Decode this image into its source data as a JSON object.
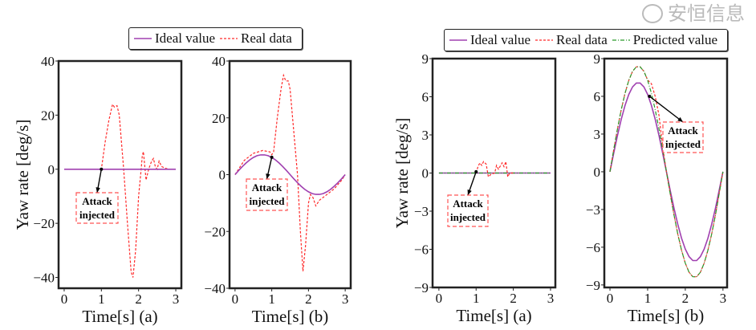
{
  "legends": [
    {
      "items": [
        {
          "label": "Ideal value",
          "color": "#a040b0",
          "style": "solid"
        },
        {
          "label": "Real data",
          "color": "#ff2a2a",
          "style": "dashed"
        }
      ]
    },
    {
      "items": [
        {
          "label": "Ideal value",
          "color": "#a040b0",
          "style": "solid"
        },
        {
          "label": "Real data",
          "color": "#ff2a2a",
          "style": "dashed"
        },
        {
          "label": "Predicted value",
          "color": "#2a9a2a",
          "style": "dashdot"
        }
      ]
    }
  ],
  "watermark": "安恒信息",
  "chart_data": [
    {
      "type": "line",
      "xlabel": "Time[s] (a)",
      "ylabel": "Yaw rate [deg/s]",
      "xlim": [
        -0.15,
        3.15
      ],
      "ylim": [
        -44,
        40
      ],
      "xticks": [
        "0",
        "1",
        "2",
        "3"
      ],
      "xtick_values": [
        0,
        1,
        2,
        3
      ],
      "yticks": [
        "−40",
        "−20",
        "0",
        "20",
        "40"
      ],
      "ytick_values": [
        -40,
        -20,
        0,
        20,
        40
      ],
      "grid": false,
      "annotation": {
        "text": [
          "Attack",
          "injected"
        ],
        "xy": [
          1.0,
          0
        ]
      },
      "series": [
        {
          "name": "Real data",
          "color": "#ff2a2a",
          "style": "dashed",
          "points": [
            [
              0,
              0
            ],
            [
              1,
              0
            ],
            [
              1.1,
              10
            ],
            [
              1.2,
              18
            ],
            [
              1.3,
              24
            ],
            [
              1.35,
              23
            ],
            [
              1.42,
              23.5
            ],
            [
              1.48,
              20
            ],
            [
              1.6,
              0
            ],
            [
              1.7,
              -20
            ],
            [
              1.8,
              -38
            ],
            [
              1.85,
              -40
            ],
            [
              1.92,
              -30
            ],
            [
              2.0,
              -10
            ],
            [
              2.07,
              0
            ],
            [
              2.1,
              5
            ],
            [
              2.13,
              6.5
            ],
            [
              2.2,
              -4
            ],
            [
              2.27,
              0
            ],
            [
              2.35,
              3
            ],
            [
              2.4,
              4
            ],
            [
              2.45,
              1
            ],
            [
              2.5,
              0
            ],
            [
              2.55,
              3
            ],
            [
              2.62,
              1
            ],
            [
              2.7,
              0.5
            ],
            [
              2.8,
              0
            ],
            [
              3,
              0
            ]
          ]
        },
        {
          "name": "Ideal value",
          "color": "#a040b0",
          "style": "solid",
          "points": [
            [
              0,
              0
            ],
            [
              3,
              0
            ]
          ]
        }
      ]
    },
    {
      "type": "line",
      "xlabel": "Time[s] (b)",
      "ylabel": "",
      "xlim": [
        -0.15,
        3.15
      ],
      "ylim": [
        -40,
        40
      ],
      "xticks": [
        "0",
        "1",
        "2",
        "3"
      ],
      "xtick_values": [
        0,
        1,
        2,
        3
      ],
      "yticks": [
        "−40",
        "−20",
        "0",
        "20",
        "40"
      ],
      "ytick_values": [
        -40,
        -20,
        0,
        20,
        40
      ],
      "grid": false,
      "annotation": {
        "text": [
          "Attack",
          "injected"
        ],
        "xy": [
          1.0,
          6.1
        ]
      },
      "series": [
        {
          "name": "Real data",
          "color": "#ff2a2a",
          "style": "dashed",
          "points": [
            [
              0,
              0
            ],
            [
              0.25,
              5
            ],
            [
              0.5,
              7.5
            ],
            [
              0.75,
              8.5
            ],
            [
              0.95,
              8
            ],
            [
              1.0,
              7
            ],
            [
              1.05,
              8
            ],
            [
              1.15,
              20
            ],
            [
              1.25,
              30
            ],
            [
              1.32,
              35
            ],
            [
              1.38,
              33
            ],
            [
              1.45,
              33
            ],
            [
              1.5,
              30
            ],
            [
              1.6,
              15
            ],
            [
              1.7,
              0
            ],
            [
              1.78,
              -20
            ],
            [
              1.85,
              -34
            ],
            [
              1.92,
              -25
            ],
            [
              2.0,
              -10
            ],
            [
              2.05,
              -7
            ],
            [
              2.12,
              -8
            ],
            [
              2.2,
              -11
            ],
            [
              2.3,
              -9
            ],
            [
              2.5,
              -7
            ],
            [
              2.7,
              -5
            ],
            [
              2.9,
              -2
            ],
            [
              3,
              0
            ]
          ]
        },
        {
          "name": "Ideal value",
          "color": "#a040b0",
          "style": "solid",
          "points": [
            [
              0,
              0
            ],
            [
              0.1,
              1.46
            ],
            [
              0.2,
              2.85
            ],
            [
              0.3,
              4.11
            ],
            [
              0.4,
              5.2
            ],
            [
              0.5,
              6.06
            ],
            [
              0.6,
              6.66
            ],
            [
              0.7,
              6.96
            ],
            [
              0.8,
              6.96
            ],
            [
              0.9,
              6.66
            ],
            [
              1.0,
              6.06
            ],
            [
              1.1,
              5.2
            ],
            [
              1.2,
              4.11
            ],
            [
              1.3,
              2.85
            ],
            [
              1.4,
              1.46
            ],
            [
              1.5,
              0
            ],
            [
              1.6,
              -1.46
            ],
            [
              1.7,
              -2.85
            ],
            [
              1.8,
              -4.11
            ],
            [
              1.9,
              -5.2
            ],
            [
              2.0,
              -6.06
            ],
            [
              2.1,
              -6.66
            ],
            [
              2.2,
              -6.96
            ],
            [
              2.3,
              -6.96
            ],
            [
              2.4,
              -6.66
            ],
            [
              2.5,
              -6.06
            ],
            [
              2.6,
              -5.2
            ],
            [
              2.7,
              -4.11
            ],
            [
              2.8,
              -2.85
            ],
            [
              2.9,
              -1.46
            ],
            [
              3.0,
              0
            ]
          ]
        }
      ]
    },
    {
      "type": "line",
      "xlabel": "Time[s] (a)",
      "ylabel": "Yaw rate [deg/s]",
      "xlim": [
        -0.17,
        3.13
      ],
      "ylim": [
        -9,
        9
      ],
      "xticks": [
        "0",
        "1",
        "2",
        "3"
      ],
      "xtick_values": [
        0,
        1,
        2,
        3
      ],
      "yticks": [
        "−9",
        "−6",
        "−3",
        "0",
        "3",
        "6",
        "9"
      ],
      "ytick_values": [
        -9,
        -6,
        -3,
        0,
        3,
        6,
        9
      ],
      "grid": false,
      "annotation": {
        "text": [
          "Attack",
          "injected"
        ],
        "xy": [
          1.0,
          0.1
        ]
      },
      "series": [
        {
          "name": "Ideal value",
          "color": "#a040b0",
          "style": "solid",
          "points": [
            [
              0,
              0
            ],
            [
              3,
              0
            ]
          ]
        },
        {
          "name": "Predicted value",
          "color": "#2a9a2a",
          "style": "dashdot",
          "points": [
            [
              0,
              0
            ],
            [
              3,
              0
            ]
          ]
        },
        {
          "name": "Real data",
          "color": "#ff2a2a",
          "style": "dashed",
          "points": [
            [
              1,
              0
            ],
            [
              1.05,
              0.5
            ],
            [
              1.1,
              0.8
            ],
            [
              1.15,
              0.6
            ],
            [
              1.2,
              0.9
            ],
            [
              1.27,
              0.7
            ],
            [
              1.33,
              -0.3
            ],
            [
              1.4,
              -0.1
            ],
            [
              1.5,
              0
            ],
            [
              1.55,
              0.6
            ],
            [
              1.6,
              0.3
            ],
            [
              1.7,
              0.8
            ],
            [
              1.75,
              0.5
            ],
            [
              1.8,
              0.9
            ],
            [
              1.85,
              -0.3
            ],
            [
              1.9,
              0
            ],
            [
              2,
              0
            ]
          ]
        }
      ]
    },
    {
      "type": "line",
      "xlabel": "Time[s] (b)",
      "ylabel": "",
      "xlim": [
        -0.15,
        3.11
      ],
      "ylim": [
        -9.2,
        9
      ],
      "xticks": [
        "0",
        "1",
        "2",
        "3"
      ],
      "xtick_values": [
        0,
        1,
        2,
        3
      ],
      "yticks": [
        "−9",
        "−6",
        "−3",
        "0",
        "3",
        "6",
        "9"
      ],
      "ytick_values": [
        -9,
        -6,
        -3,
        0,
        3,
        6,
        9
      ],
      "grid": false,
      "annotation": {
        "text": [
          "Attack",
          "injected"
        ],
        "xy": [
          1.05,
          6.0
        ]
      },
      "series": [
        {
          "name": "Ideal value",
          "color": "#a040b0",
          "style": "solid",
          "points": [
            [
              0,
              0
            ],
            [
              0.1,
              1.48
            ],
            [
              0.2,
              2.89
            ],
            [
              0.3,
              4.17
            ],
            [
              0.4,
              5.28
            ],
            [
              0.5,
              6.15
            ],
            [
              0.6,
              6.75
            ],
            [
              0.7,
              7.06
            ],
            [
              0.8,
              7.06
            ],
            [
              0.9,
              6.75
            ],
            [
              1.0,
              6.15
            ],
            [
              1.1,
              5.28
            ],
            [
              1.2,
              4.17
            ],
            [
              1.3,
              2.89
            ],
            [
              1.4,
              1.48
            ],
            [
              1.5,
              0
            ],
            [
              1.6,
              -1.48
            ],
            [
              1.7,
              -2.89
            ],
            [
              1.8,
              -4.17
            ],
            [
              1.9,
              -5.28
            ],
            [
              2.0,
              -6.15
            ],
            [
              2.1,
              -6.75
            ],
            [
              2.2,
              -7.06
            ],
            [
              2.3,
              -7.06
            ],
            [
              2.4,
              -6.75
            ],
            [
              2.5,
              -6.15
            ],
            [
              2.6,
              -5.28
            ],
            [
              2.7,
              -4.17
            ],
            [
              2.8,
              -2.89
            ],
            [
              2.9,
              -1.48
            ],
            [
              3.0,
              0
            ]
          ]
        },
        {
          "name": "Real data",
          "color": "#ff2a2a",
          "style": "dashed",
          "points": [
            [
              0,
              0
            ],
            [
              0.1,
              1.75
            ],
            [
              0.2,
              3.42
            ],
            [
              0.3,
              4.94
            ],
            [
              0.4,
              6.24
            ],
            [
              0.5,
              7.27
            ],
            [
              0.6,
              7.99
            ],
            [
              0.7,
              8.35
            ],
            [
              0.8,
              8.35
            ],
            [
              0.9,
              7.99
            ],
            [
              1.0,
              7.3
            ],
            [
              1.1,
              7.0
            ],
            [
              1.2,
              6.0
            ],
            [
              1.3,
              4.5
            ],
            [
              1.4,
              2.0
            ],
            [
              1.5,
              0
            ],
            [
              1.6,
              -1.75
            ],
            [
              1.7,
              -3.42
            ],
            [
              1.8,
              -4.94
            ],
            [
              1.9,
              -6.24
            ],
            [
              2.0,
              -7.27
            ],
            [
              2.1,
              -7.99
            ],
            [
              2.2,
              -8.35
            ],
            [
              2.3,
              -8.35
            ],
            [
              2.4,
              -7.99
            ],
            [
              2.5,
              -7.27
            ],
            [
              2.6,
              -6.24
            ],
            [
              2.7,
              -4.94
            ],
            [
              2.8,
              -3.42
            ],
            [
              2.9,
              -1.75
            ],
            [
              3.0,
              0
            ]
          ]
        },
        {
          "name": "Predicted value",
          "color": "#2a9a2a",
          "style": "dashdot",
          "points": [
            [
              0,
              0
            ],
            [
              0.1,
              1.75
            ],
            [
              0.2,
              3.42
            ],
            [
              0.3,
              4.94
            ],
            [
              0.4,
              6.24
            ],
            [
              0.5,
              7.27
            ],
            [
              0.6,
              7.99
            ],
            [
              0.7,
              8.35
            ],
            [
              0.8,
              8.35
            ],
            [
              0.9,
              7.99
            ],
            [
              1.0,
              7.27
            ],
            [
              1.1,
              6.24
            ],
            [
              1.2,
              4.94
            ],
            [
              1.3,
              3.42
            ],
            [
              1.4,
              1.75
            ],
            [
              1.5,
              0
            ],
            [
              1.6,
              -1.75
            ],
            [
              1.7,
              -3.42
            ],
            [
              1.8,
              -4.94
            ],
            [
              1.9,
              -6.24
            ],
            [
              2.0,
              -7.27
            ],
            [
              2.1,
              -7.99
            ],
            [
              2.2,
              -8.35
            ],
            [
              2.3,
              -8.35
            ],
            [
              2.4,
              -7.99
            ],
            [
              2.5,
              -7.27
            ],
            [
              2.6,
              -6.24
            ],
            [
              2.7,
              -4.94
            ],
            [
              2.8,
              -3.42
            ],
            [
              2.9,
              -1.75
            ],
            [
              3.0,
              0
            ]
          ]
        }
      ]
    }
  ]
}
